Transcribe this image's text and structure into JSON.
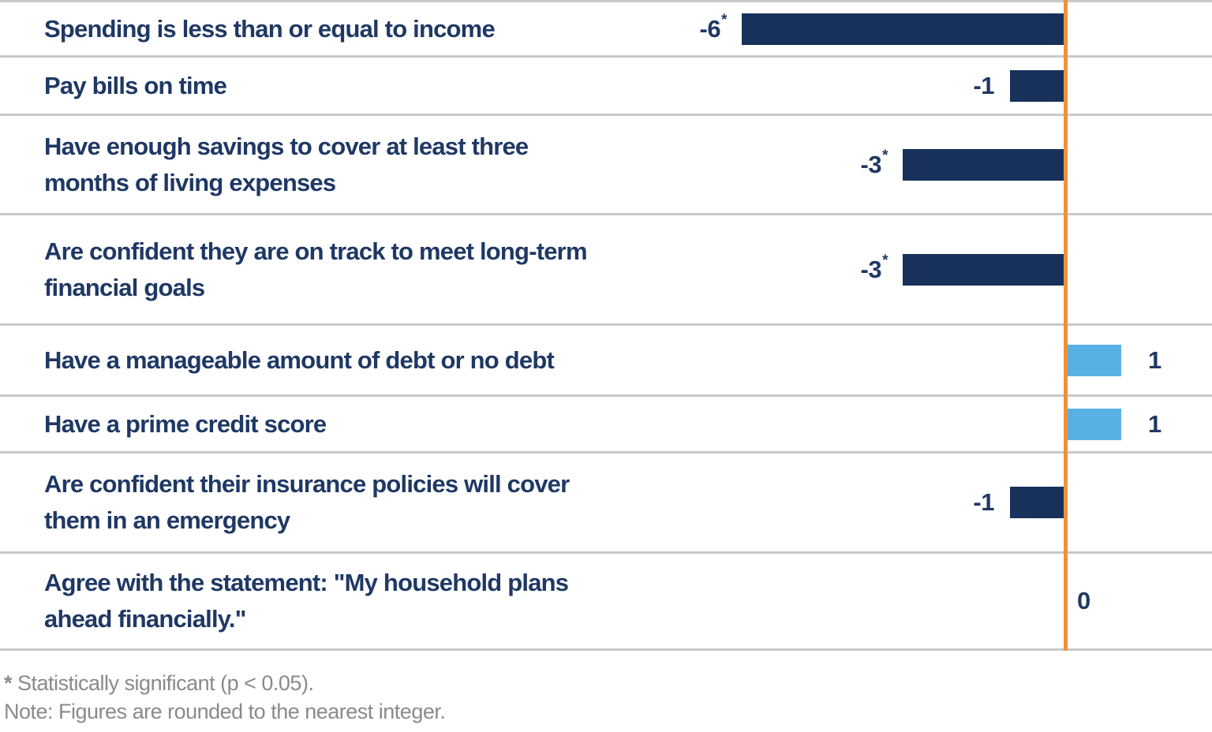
{
  "chart_data": {
    "type": "bar",
    "orientation": "horizontal",
    "title": "",
    "xlabel": "",
    "ylabel": "",
    "xlim": [
      -6,
      2
    ],
    "zero_axis_shown": true,
    "grid": false,
    "legend": "none",
    "star_symbol": "*",
    "categories": [
      "Spending is less than or equal to income",
      "Pay bills on time",
      "Have enough savings to cover at least three months of living expenses",
      "Are confident they are on track to meet long-term financial goals",
      "Have a manageable amount of debt or no debt",
      "Have a prime credit score",
      "Are confident their insurance policies will cover them in an emergency",
      "Agree with the statement: \"My household plans ahead financially.\""
    ],
    "values": [
      -6,
      -1,
      -3,
      -3,
      1,
      1,
      -1,
      0
    ],
    "rows": [
      {
        "lines": [
          "Spending is less than or equal to income"
        ],
        "value": -6,
        "display": "-6",
        "significant": true
      },
      {
        "lines": [
          "Pay bills on time"
        ],
        "value": -1,
        "display": "-1",
        "significant": false
      },
      {
        "lines": [
          "Have enough savings to cover at least three",
          "months of living expenses"
        ],
        "value": -3,
        "display": "-3",
        "significant": true
      },
      {
        "lines": [
          "Are confident they are on track to meet long-term",
          "financial goals"
        ],
        "value": -3,
        "display": "-3",
        "significant": true
      },
      {
        "lines": [
          "Have a manageable amount of debt or no debt"
        ],
        "value": 1,
        "display": "1",
        "significant": false
      },
      {
        "lines": [
          "Have a prime credit score"
        ],
        "value": 1,
        "display": "1",
        "significant": false
      },
      {
        "lines": [
          "Are confident their insurance policies will cover",
          "them in an emergency"
        ],
        "value": -1,
        "display": "-1",
        "significant": false
      },
      {
        "lines": [
          "Agree with the statement: \"My household plans",
          "ahead financially.\""
        ],
        "value": 0,
        "display": "0",
        "significant": false
      }
    ],
    "colors": {
      "negative_bar": "#17315B",
      "positive_bar": "#57B1E5",
      "axis_line": "#F0913A",
      "label_text": "#1F3864",
      "divider": "#C9C9C9",
      "footnote_text": "#8A8A8A"
    }
  },
  "footnotes": {
    "star": "*",
    "significance_text": " Statistically significant (p < 0.05).",
    "note": "Note: Figures are rounded to the nearest integer."
  }
}
